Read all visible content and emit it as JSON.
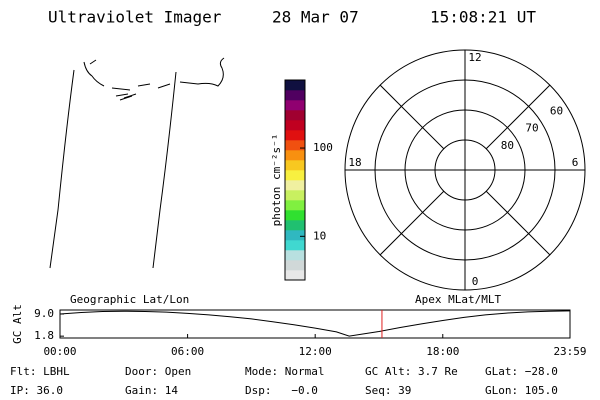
{
  "header": {
    "instrument": "Ultraviolet Imager",
    "date": "28 Mar 07",
    "time": "15:08:21 UT"
  },
  "map_label": "Geographic Lat/Lon",
  "colorbar": {
    "label": "photon cm⁻²s⁻¹",
    "log": true,
    "clim": [
      3.2,
      590
    ],
    "ticks": [
      10,
      100
    ],
    "colors": [
      "#e8e8e8",
      "#d0d8d8",
      "#b8e0e0",
      "#40d8d0",
      "#30b8c0",
      "#20c070",
      "#30e030",
      "#80f040",
      "#c8f060",
      "#f0f0a0",
      "#f8f040",
      "#f8c820",
      "#f89010",
      "#f05010",
      "#e01010",
      "#c00020",
      "#a00030",
      "#900070",
      "#500060",
      "#101040"
    ]
  },
  "polar": {
    "label": "Apex MLat/MLT",
    "rlim": [
      50,
      90
    ],
    "rticks": [
      60,
      70,
      80
    ],
    "mlt_ticks": [
      12,
      18,
      6,
      0
    ]
  },
  "chart_data": {
    "type": "line",
    "ylabel": "GC Alt",
    "x": [
      0,
      1,
      2,
      3,
      4,
      5,
      6,
      7,
      8,
      9,
      10,
      11,
      12,
      13,
      13.6,
      15,
      16,
      17,
      18,
      19,
      20,
      21,
      22,
      23,
      23.983
    ],
    "values": [
      9.0,
      9.5,
      9.8,
      9.9,
      9.8,
      9.6,
      9.2,
      8.7,
      8.1,
      7.4,
      6.5,
      5.5,
      4.4,
      3.2,
      1.8,
      3.3,
      4.6,
      5.8,
      6.9,
      7.9,
      8.7,
      9.3,
      9.7,
      9.9,
      10.0
    ],
    "color": "#000000",
    "xlim": [
      0,
      23.983
    ],
    "ylim": [
      1.2,
      10.3
    ],
    "xticks": [
      {
        "value": 0,
        "label": "00:00"
      },
      {
        "value": 6,
        "label": "06:00"
      },
      {
        "value": 12,
        "label": "12:00"
      },
      {
        "value": 18,
        "label": "18:00"
      },
      {
        "value": 23.983,
        "label": "23:59"
      }
    ],
    "yticks": [
      1.8,
      {
        "value": 9.0,
        "label": "9.0"
      }
    ],
    "marker_x": 15.14,
    "marker_color": "#e02020"
  },
  "info": {
    "rows": [
      [
        "Flt: LBHL",
        "Door: Open",
        "Mode: Normal",
        "GC Alt: 3.7 Re",
        "GLat: −28.0"
      ],
      [
        "IP: 36.0",
        "Gain: 14",
        "Dsp:   −0.0",
        "Seq: 39",
        "GLon: 105.0"
      ]
    ]
  }
}
